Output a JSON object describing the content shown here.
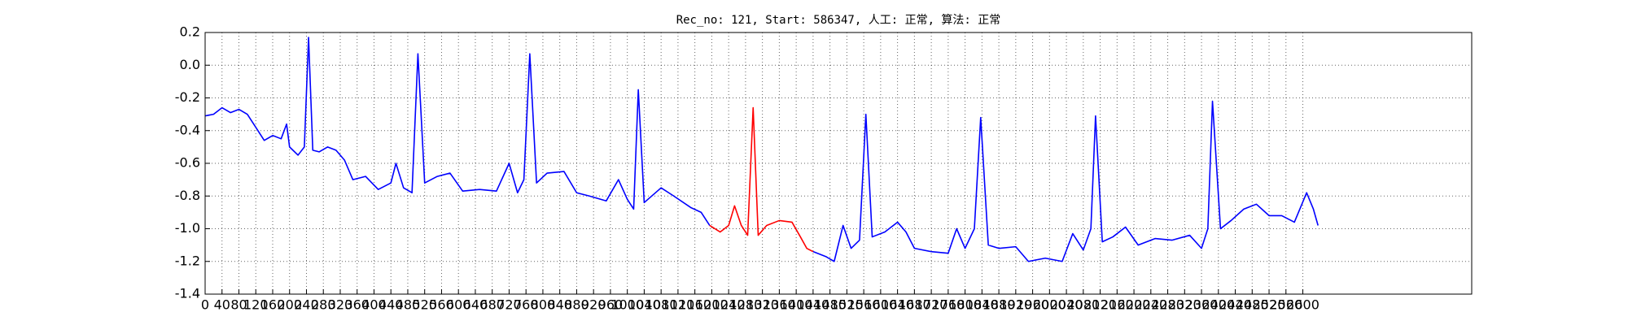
{
  "chart_data": {
    "type": "line",
    "title": "Rec_no: 121, Start: 586347, 人工: 正常, 算法: 正常",
    "xlim": [
      0,
      3000
    ],
    "ylim": [
      -1.4,
      0.2
    ],
    "xticks": [
      0,
      40,
      80,
      120,
      160,
      200,
      240,
      280,
      320,
      360,
      400,
      440,
      480,
      520,
      560,
      600,
      640,
      680,
      720,
      760,
      800,
      840,
      880,
      920,
      960,
      1000,
      1040,
      1080,
      1120,
      1160,
      1200,
      1240,
      1280,
      1320,
      1360,
      1400,
      1440,
      1480,
      1520,
      1560,
      1600,
      1640,
      1680,
      1720,
      1760,
      1800,
      1840,
      1880,
      1920,
      1960,
      2000,
      2040,
      2080,
      2120,
      2160,
      2200,
      2240,
      2280,
      2320,
      2360,
      2400,
      2440,
      2480,
      2520,
      2560,
      2600
    ],
    "yticks": [
      -1.4,
      -1.2,
      {
        "value": -1,
        "label": "-1.0"
      },
      -0.8,
      -0.6,
      -0.4,
      -0.2,
      {
        "value": 0,
        "label": "0.0"
      },
      0.2
    ],
    "grid": true,
    "series": [
      {
        "name": "blue",
        "color": "#0000ff",
        "x": [
          0,
          20,
          40,
          60,
          80,
          100,
          120,
          140,
          160,
          180,
          193,
          200,
          220,
          235,
          245,
          255,
          270,
          290,
          310,
          330,
          350,
          380,
          410,
          440,
          452,
          470,
          490,
          504,
          520,
          550,
          580,
          610,
          650,
          690,
          720,
          740,
          755,
          769,
          785,
          810,
          850,
          880,
          910,
          950,
          979,
          1000,
          1015,
          1026,
          1040,
          1080,
          1110,
          1150,
          1175,
          1195,
          1300,
          1440,
          1470,
          1490,
          1511,
          1530,
          1550,
          1565,
          1580,
          1610,
          1640,
          1660,
          1680,
          1720,
          1760,
          1780,
          1800,
          1822,
          1837,
          1855,
          1880,
          1920,
          1950,
          1990,
          2030,
          2055,
          2080,
          2098,
          2109,
          2125,
          2150,
          2180,
          2210,
          2250,
          2290,
          2332,
          2360,
          2375,
          2386,
          2405,
          2430,
          2460,
          2490,
          2520,
          2550,
          2580,
          2609,
          2625,
          2636
        ],
        "values": [
          -0.31,
          -0.3,
          -0.26,
          -0.29,
          -0.27,
          -0.3,
          -0.38,
          -0.46,
          -0.43,
          -0.45,
          -0.36,
          -0.5,
          -0.55,
          -0.5,
          0.17,
          -0.52,
          -0.53,
          -0.5,
          -0.52,
          -0.58,
          -0.7,
          -0.68,
          -0.76,
          -0.72,
          -0.6,
          -0.75,
          -0.78,
          0.07,
          -0.72,
          -0.68,
          -0.66,
          -0.77,
          -0.76,
          -0.77,
          -0.6,
          -0.78,
          -0.7,
          0.07,
          -0.72,
          -0.66,
          -0.65,
          -0.78,
          -0.8,
          -0.83,
          -0.7,
          -0.82,
          -0.88,
          -0.15,
          -0.84,
          -0.75,
          -0.8,
          -0.87,
          -0.9,
          -0.98,
          null,
          -1.14,
          -1.17,
          -1.2,
          -0.98,
          -1.12,
          -1.07,
          -0.3,
          -1.05,
          -1.02,
          -0.96,
          -1.02,
          -1.12,
          -1.14,
          -1.15,
          -1.0,
          -1.12,
          -1.0,
          -0.32,
          -1.1,
          -1.12,
          -1.11,
          -1.2,
          -1.18,
          -1.2,
          -1.03,
          -1.13,
          -1.0,
          -0.31,
          -1.08,
          -1.05,
          -0.99,
          -1.1,
          -1.06,
          -1.07,
          -1.04,
          -1.12,
          -1.0,
          -0.22,
          -1.0,
          -0.95,
          -0.88,
          -0.85,
          -0.92,
          -0.92,
          -0.96,
          -0.78,
          -0.88,
          -0.98
        ]
      },
      {
        "name": "red",
        "color": "#ff0000",
        "x": [
          1195,
          1220,
          1240,
          1254,
          1270,
          1285,
          1298,
          1310,
          1330,
          1360,
          1390,
          1410,
          1425,
          1440
        ],
        "values": [
          -0.98,
          -1.02,
          -0.98,
          -0.86,
          -0.98,
          -1.04,
          -0.26,
          -1.04,
          -0.98,
          -0.95,
          -0.96,
          -1.05,
          -1.12,
          -1.14
        ]
      }
    ]
  }
}
